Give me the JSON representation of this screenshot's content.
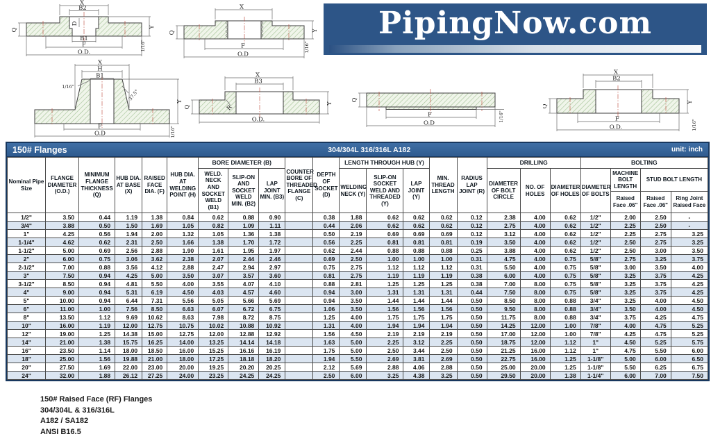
{
  "logo": {
    "text": "PipingNow.com"
  },
  "table_title": {
    "left": "150# Flanges",
    "center": "304/304L  316/316L  A182",
    "right": "unit: inch"
  },
  "headers": {
    "nominal": "Nominal Pipe Size",
    "flange_od": "FLANGE DIAMETER (O.D.)",
    "min_thickness": "MINIMUM FLANGE THICKNESS (Q)",
    "hub_dia_base": "HUB DIA. AT BASE (X)",
    "raised_face_dia": "RAISED FACE DIA. (F)",
    "hub_dia_weld": "HUB DIA. AT WELDING POINT (H)",
    "bore_group": "BORE DIAMETER (B)",
    "bore_b1": "WELD. NECK AND SOCKET WELD (B1)",
    "bore_b2": "SLIP-ON AND SOCKET WELD MIN. (B2)",
    "bore_b3": "LAP JOINT MIN. (B3)",
    "counter_bore": "COUNTER BORE OF THREADED FLANGE (C)",
    "socket_depth": "DEPTH OF SOCKET (D)",
    "hub_group": "LENGTH THROUGH HUB (Y)",
    "hub_weld_neck": "WELDING NECK (Y)",
    "hub_slip_on": "SLIP-ON SOCKET WELD AND THREADED (Y)",
    "hub_lap": "LAP JOINT (Y)",
    "min_thread": "MIN. THREAD LENGTH",
    "radius_lap": "RADIUS LAP JOINT (R)",
    "drilling_group": "DRILLING",
    "bolt_circle": "DIAMETER OF BOLT CIRCLE",
    "num_holes": "NO. OF HOLES",
    "hole_dia": "DIAMETER OF HOLES",
    "bolting_group": "BOLTING",
    "bolt_dia": "DIAMETER OF BOLTS",
    "machine_bolt": "MACHINE BOLT LENGTH",
    "stud_bolt": "STUD BOLT LENGTH",
    "machine_rf": "Raised Face .06\"",
    "stud_rf": "Raised Face .06\"",
    "stud_ring": "Ring Joint Raised Face"
  },
  "rows": [
    [
      "1/2\"",
      "3.50",
      "0.44",
      "1.19",
      "1.38",
      "0.84",
      "0.62",
      "0.88",
      "0.90",
      "",
      "0.38",
      "1.88",
      "0.62",
      "0.62",
      "0.62",
      "0.12",
      "2.38",
      "4.00",
      "0.62",
      "1/2\"",
      "2.00",
      "2.50",
      "-"
    ],
    [
      "3/4\"",
      "3.88",
      "0.50",
      "1.50",
      "1.69",
      "1.05",
      "0.82",
      "1.09",
      "1.11",
      "",
      "0.44",
      "2.06",
      "0.62",
      "0.62",
      "0.62",
      "0.12",
      "2.75",
      "4.00",
      "0.62",
      "1/2\"",
      "2.25",
      "2.50",
      "-"
    ],
    [
      "1\"",
      "4.25",
      "0.56",
      "1.94",
      "2.00",
      "1.32",
      "1.05",
      "1.36",
      "1.38",
      "",
      "0.50",
      "2.19",
      "0.69",
      "0.69",
      "0.69",
      "0.12",
      "3.12",
      "4.00",
      "0.62",
      "1/2\"",
      "2.25",
      "2.75",
      "3.25"
    ],
    [
      "1-1/4\"",
      "4.62",
      "0.62",
      "2.31",
      "2.50",
      "1.66",
      "1.38",
      "1.70",
      "1.72",
      "",
      "0.56",
      "2.25",
      "0.81",
      "0.81",
      "0.81",
      "0.19",
      "3.50",
      "4.00",
      "0.62",
      "1/2\"",
      "2.50",
      "2.75",
      "3.25"
    ],
    [
      "1-1/2\"",
      "5.00",
      "0.69",
      "2.56",
      "2.88",
      "1.90",
      "1.61",
      "1.95",
      "1.97",
      "",
      "0.62",
      "2.44",
      "0.88",
      "0.88",
      "0.88",
      "0.25",
      "3.88",
      "4.00",
      "0.62",
      "1/2\"",
      "2.50",
      "3.00",
      "3.50"
    ],
    [
      "2\"",
      "6.00",
      "0.75",
      "3.06",
      "3.62",
      "2.38",
      "2.07",
      "2.44",
      "2.46",
      "",
      "0.69",
      "2.50",
      "1.00",
      "1.00",
      "1.00",
      "0.31",
      "4.75",
      "4.00",
      "0.75",
      "5/8\"",
      "2.75",
      "3.25",
      "3.75"
    ],
    [
      "2-1/2\"",
      "7.00",
      "0.88",
      "3.56",
      "4.12",
      "2.88",
      "2.47",
      "2.94",
      "2.97",
      "",
      "0.75",
      "2.75",
      "1.12",
      "1.12",
      "1.12",
      "0.31",
      "5.50",
      "4.00",
      "0.75",
      "5/8\"",
      "3.00",
      "3.50",
      "4.00"
    ],
    [
      "3\"",
      "7.50",
      "0.94",
      "4.25",
      "5.00",
      "3.50",
      "3.07",
      "3.57",
      "3.60",
      "",
      "0.81",
      "2.75",
      "1.19",
      "1.19",
      "1.19",
      "0.38",
      "6.00",
      "4.00",
      "0.75",
      "5/8\"",
      "3.25",
      "3.75",
      "4.25"
    ],
    [
      "3-1/2\"",
      "8.50",
      "0.94",
      "4.81",
      "5.50",
      "4.00",
      "3.55",
      "4.07",
      "4.10",
      "",
      "0.88",
      "2.81",
      "1.25",
      "1.25",
      "1.25",
      "0.38",
      "7.00",
      "8.00",
      "0.75",
      "5/8\"",
      "3.25",
      "3.75",
      "4.25"
    ],
    [
      "4\"",
      "9.00",
      "0.94",
      "5.31",
      "6.19",
      "4.50",
      "4.03",
      "4.57",
      "4.60",
      "",
      "0.94",
      "3.00",
      "1.31",
      "1.31",
      "1.31",
      "0.44",
      "7.50",
      "8.00",
      "0.75",
      "5/8\"",
      "3.25",
      "3.75",
      "4.25"
    ],
    [
      "5\"",
      "10.00",
      "0.94",
      "6.44",
      "7.31",
      "5.56",
      "5.05",
      "5.66",
      "5.69",
      "",
      "0.94",
      "3.50",
      "1.44",
      "1.44",
      "1.44",
      "0.50",
      "8.50",
      "8.00",
      "0.88",
      "3/4\"",
      "3.25",
      "4.00",
      "4.50"
    ],
    [
      "6\"",
      "11.00",
      "1.00",
      "7.56",
      "8.50",
      "6.63",
      "6.07",
      "6.72",
      "6.75",
      "",
      "1.06",
      "3.50",
      "1.56",
      "1.56",
      "1.56",
      "0.50",
      "9.50",
      "8.00",
      "0.88",
      "3/4\"",
      "3.50",
      "4.00",
      "4.50"
    ],
    [
      "8\"",
      "13.50",
      "1.12",
      "9.69",
      "10.62",
      "8.63",
      "7.98",
      "8.72",
      "8.75",
      "",
      "1.25",
      "4.00",
      "1.75",
      "1.75",
      "1.75",
      "0.50",
      "11.75",
      "8.00",
      "0.88",
      "3/4\"",
      "3.75",
      "4.25",
      "4.75"
    ],
    [
      "10\"",
      "16.00",
      "1.19",
      "12.00",
      "12.75",
      "10.75",
      "10.02",
      "10.88",
      "10.92",
      "",
      "1.31",
      "4.00",
      "1.94",
      "1.94",
      "1.94",
      "0.50",
      "14.25",
      "12.00",
      "1.00",
      "7/8\"",
      "4.00",
      "4.75",
      "5.25"
    ],
    [
      "12\"",
      "19.00",
      "1.25",
      "14.38",
      "15.00",
      "12.75",
      "12.00",
      "12.88",
      "12.92",
      "",
      "1.56",
      "4.50",
      "2.19",
      "2.19",
      "2.19",
      "0.50",
      "17.00",
      "12.00",
      "1.00",
      "7/8\"",
      "4.25",
      "4.75",
      "5.25"
    ],
    [
      "14\"",
      "21.00",
      "1.38",
      "15.75",
      "16.25",
      "14.00",
      "13.25",
      "14.14",
      "14.18",
      "",
      "1.63",
      "5.00",
      "2.25",
      "3.12",
      "2.25",
      "0.50",
      "18.75",
      "12.00",
      "1.12",
      "1\"",
      "4.50",
      "5.25",
      "5.75"
    ],
    [
      "16\"",
      "23.50",
      "1.14",
      "18.00",
      "18.50",
      "16.00",
      "15.25",
      "16.16",
      "16.19",
      "",
      "1.75",
      "5.00",
      "2.50",
      "3.44",
      "2.50",
      "0.50",
      "21.25",
      "16.00",
      "1.12",
      "1\"",
      "4.75",
      "5.50",
      "6.00"
    ],
    [
      "18\"",
      "25.00",
      "1.56",
      "19.88",
      "21.00",
      "18.00",
      "17.25",
      "18.18",
      "18.20",
      "",
      "1.94",
      "5.50",
      "2.69",
      "3.81",
      "2.69",
      "0.50",
      "22.75",
      "16.00",
      "1.25",
      "1-1/8\"",
      "5.00",
      "6.00",
      "6.50"
    ],
    [
      "20\"",
      "27.50",
      "1.69",
      "22.00",
      "23.00",
      "20.00",
      "19.25",
      "20.20",
      "20.25",
      "",
      "2.12",
      "5.69",
      "2.88",
      "4.06",
      "2.88",
      "0.50",
      "25.00",
      "20.00",
      "1.25",
      "1-1/8\"",
      "5.50",
      "6.25",
      "6.75"
    ],
    [
      "24\"",
      "32.00",
      "1.88",
      "26.12",
      "27.25",
      "24.00",
      "23.25",
      "24.25",
      "24.25",
      "",
      "2.50",
      "6.00",
      "3.25",
      "4.38",
      "3.25",
      "0.50",
      "29.50",
      "20.00",
      "1.38",
      "1-1/4\"",
      "6.00",
      "7.00",
      "7.50"
    ]
  ],
  "footer": {
    "lines": [
      "150# Raised Face (RF) Flanges",
      "304/304L & 316/316L",
      "A182 / SA182",
      "ANSI B16.5"
    ]
  },
  "drawings": {
    "socket_weld": {
      "x": "X",
      "b2": "B2",
      "d": "D",
      "q": "Q",
      "b1": "B1",
      "f": "F",
      "od": "O.D.",
      "y": "Y",
      "rf": "1/16\""
    },
    "threaded": {
      "x": "X",
      "q": "Q",
      "f": "F",
      "od": "O.D",
      "y": "Y",
      "rf": "1/16\""
    },
    "weld_neck": {
      "x": "X",
      "h": "H",
      "b1": "B1",
      "lip": "1/16\"",
      "bevel": "37.5°",
      "y": "Y",
      "f": "F",
      "od": "O.D",
      "rf": "1/16\""
    },
    "lap_joint": {
      "x": "X",
      "b3": "B3",
      "q": "Q",
      "r": "R",
      "od": "O.D.",
      "y": "Y"
    },
    "blind": {
      "q": "Q",
      "f": "F",
      "od": "O.D",
      "rf": "1/16\""
    },
    "slip_on": {
      "x": "X",
      "b2": "B2",
      "q": "Q",
      "f": "F",
      "od": "O.D.",
      "y": "Y",
      "rf": "1/16\""
    }
  },
  "colors": {
    "title_bar_blue": "#336699",
    "logo_blue": "#2d5587",
    "row_alt_blue": "#dbe5f1",
    "border_navy": "#17375e"
  }
}
